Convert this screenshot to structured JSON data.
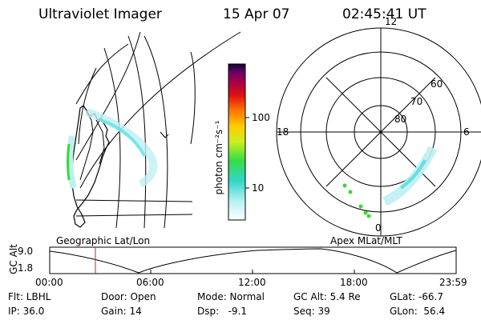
{
  "header": {
    "instrument": "Ultraviolet Imager",
    "date": "15 Apr 07",
    "time": "02:45:41 UT"
  },
  "map_panel": {
    "label": "Geographic Lat/Lon"
  },
  "colorbar": {
    "unit_label": "photon cm⁻²s⁻¹",
    "tick_100": "100",
    "tick_10": "10"
  },
  "polar_panel": {
    "label": "Apex MLat/MLT",
    "mlt_top": "12",
    "mlt_right": "6",
    "mlt_bottom": "0",
    "mlt_left": "18",
    "lat_60": "60",
    "lat_70": "70",
    "lat_80": "80"
  },
  "altitude_plot": {
    "ylabel": "GC Alt",
    "y_top": "9.0",
    "y_bottom": "1.8",
    "x_ticks": [
      "00:00",
      "06:00",
      "12:00",
      "18:00",
      "23:59"
    ]
  },
  "info": {
    "filter": "Flt: LBHL",
    "door": "Door: Open",
    "mode": "Mode: Normal",
    "gc_alt": "GC Alt: 5.4 Re",
    "glat": "GLat: -66.7",
    "ip": "IP: 36.0",
    "gain": "Gain: 14",
    "dsp": "Dsp:   -9.1",
    "seq": "Seq: 39",
    "glon": "GLon:  56.4"
  },
  "colors": {
    "background": "#ffffff",
    "foreground": "#000000",
    "marker": "#cc2222",
    "aurora_faint": "#bfeff2",
    "aurora_mid": "#5fe0e6",
    "aurora_bright": "#33dd33"
  }
}
